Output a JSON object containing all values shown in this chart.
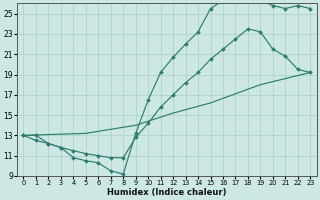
{
  "xlabel": "Humidex (Indice chaleur)",
  "bg_color": "#cde8e4",
  "line_color": "#2d7d6e",
  "grid_color": "#aed4cc",
  "xlim": [
    -0.5,
    23.5
  ],
  "ylim": [
    9,
    26
  ],
  "xticks": [
    0,
    1,
    2,
    3,
    4,
    5,
    6,
    7,
    8,
    9,
    10,
    11,
    12,
    13,
    14,
    15,
    16,
    17,
    18,
    19,
    20,
    21,
    22,
    23
  ],
  "yticks": [
    9,
    11,
    13,
    15,
    17,
    19,
    21,
    23,
    25
  ],
  "line1_x": [
    0,
    1,
    2,
    3,
    4,
    5,
    6,
    7,
    8,
    9,
    10,
    11,
    12,
    13,
    14,
    15,
    16,
    17,
    18,
    19,
    20,
    21,
    22,
    23
  ],
  "line1_y": [
    13,
    12.5,
    12.2,
    11.8,
    10.8,
    10.5,
    10.3,
    9.5,
    9.2,
    13.2,
    16.5,
    19.2,
    20.7,
    22.0,
    23.2,
    25.5,
    26.3,
    26.3,
    26.5,
    26.3,
    25.8,
    25.5,
    25.8,
    25.5
  ],
  "line2_x": [
    0,
    1,
    2,
    3,
    4,
    5,
    6,
    7,
    8,
    9,
    10,
    11,
    12,
    13,
    14,
    15,
    16,
    17,
    18,
    19,
    20,
    21,
    22,
    23
  ],
  "line2_y": [
    13,
    13,
    12.2,
    11.8,
    11.5,
    11.2,
    11.0,
    10.8,
    10.8,
    12.8,
    14.2,
    15.8,
    17.0,
    18.2,
    19.2,
    20.5,
    21.5,
    22.5,
    23.5,
    23.2,
    21.5,
    20.8,
    19.5,
    19.2
  ],
  "line3_x": [
    0,
    5,
    9,
    12,
    15,
    19,
    23
  ],
  "line3_y": [
    13,
    13.2,
    14.0,
    15.2,
    16.2,
    18.0,
    19.2
  ]
}
